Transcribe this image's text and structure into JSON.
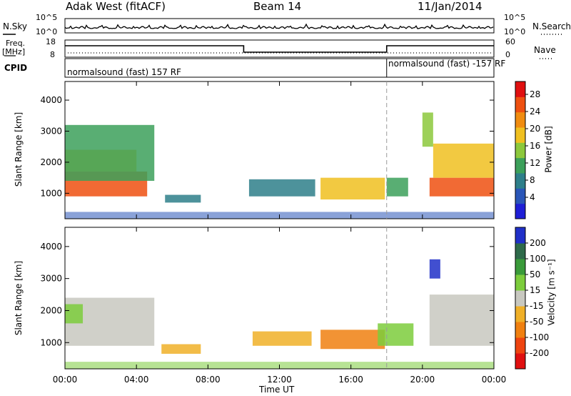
{
  "header": {
    "station": "Adak West (fitACF)",
    "beam": "Beam 14",
    "date": "11/Jan/2014"
  },
  "strip": {
    "nsky_label": "N.Sky",
    "nsearch_label": "N.Search",
    "freq_label": "Freq.",
    "freq_unit": "[MHz]",
    "nave_label": "Nave",
    "cpid_label": "CPID",
    "freq_ticks": [
      "18",
      "8"
    ],
    "nave_ticks": [
      "60",
      "0"
    ],
    "cpid_segments": [
      {
        "text": "normalsound (fast) 157 RF",
        "start_h": 0,
        "end_h": 18
      },
      {
        "text": "normalsound (fast) -157 RF",
        "start_h": 18,
        "end_h": 24
      }
    ],
    "freq_steps": [
      {
        "start_h": 0,
        "end_h": 10,
        "level": 0.8
      },
      {
        "start_h": 10,
        "end_h": 18,
        "level": 0.35
      },
      {
        "start_h": 18,
        "end_h": 24,
        "level": 0.8
      }
    ]
  },
  "axes": {
    "xlabel": "Time UT",
    "xticks": [
      "00:00",
      "04:00",
      "08:00",
      "12:00",
      "16:00",
      "20:00",
      "00:00"
    ],
    "ylabel": "Slant Range [km]",
    "yticks": [
      "1000",
      "2000",
      "3000",
      "4000"
    ],
    "ylim": [
      180,
      4600
    ],
    "xlim": [
      0,
      24
    ]
  },
  "power_colorbar": {
    "label": "Power [dB]",
    "ticks": [
      "4",
      "8",
      "12",
      "16",
      "20",
      "24",
      "28"
    ],
    "colors": [
      "#1f1fd6",
      "#2a56b8",
      "#2e7f8a",
      "#3ca05a",
      "#8cc83c",
      "#f0c020",
      "#f08c10",
      "#ee5010",
      "#e01010"
    ]
  },
  "velocity_colorbar": {
    "label": "Velocity [m s⁻¹]",
    "ticks": [
      "200",
      "100",
      "50",
      "15",
      "-15",
      "-50",
      "-100",
      "-200"
    ],
    "colors": [
      "#2030c8",
      "#2e6a4a",
      "#3a9a3a",
      "#7ccc3c",
      "#c8c8c0",
      "#f0b028",
      "#f08010",
      "#ee4410",
      "#e01010"
    ]
  },
  "chart_data": [
    {
      "type": "heatmap",
      "title": "Power",
      "xlabel": "Time UT",
      "ylabel": "Slant Range [km]",
      "xlim": [
        0,
        24
      ],
      "ylim": [
        180,
        4600
      ],
      "regions": [
        {
          "t0": 0.0,
          "t1": 4.6,
          "r0": 900,
          "r1": 1700,
          "value": 28
        },
        {
          "t0": 0.0,
          "t1": 4.0,
          "r0": 1700,
          "r1": 2400,
          "value": 20
        },
        {
          "t0": 0.0,
          "t1": 5.0,
          "r0": 1400,
          "r1": 3200,
          "value": 12
        },
        {
          "t0": 5.6,
          "t1": 7.6,
          "r0": 700,
          "r1": 950,
          "value": 8
        },
        {
          "t0": 10.3,
          "t1": 14.0,
          "r0": 900,
          "r1": 1450,
          "value": 6
        },
        {
          "t0": 14.3,
          "t1": 17.9,
          "r0": 800,
          "r1": 1500,
          "value": 18
        },
        {
          "t0": 18.0,
          "t1": 19.2,
          "r0": 900,
          "r1": 1500,
          "value": 10
        },
        {
          "t0": 20.4,
          "t1": 24.0,
          "r0": 900,
          "r1": 1500,
          "value": 28
        },
        {
          "t0": 20.6,
          "t1": 24.0,
          "r0": 1500,
          "r1": 2600,
          "value": 18
        },
        {
          "t0": 20.0,
          "t1": 20.6,
          "r0": 2500,
          "r1": 3600,
          "value": 14
        }
      ]
    },
    {
      "type": "heatmap",
      "title": "Velocity",
      "xlabel": "Time UT",
      "ylabel": "Slant Range [km]",
      "xlim": [
        0,
        24
      ],
      "ylim": [
        180,
        4600
      ],
      "regions": [
        {
          "t0": 0.0,
          "t1": 5.0,
          "r0": 900,
          "r1": 2400,
          "value": 0
        },
        {
          "t0": 0.0,
          "t1": 1.0,
          "r0": 1600,
          "r1": 2200,
          "value": 30
        },
        {
          "t0": 5.4,
          "t1": 7.6,
          "r0": 650,
          "r1": 950,
          "value": -40
        },
        {
          "t0": 10.5,
          "t1": 13.8,
          "r0": 900,
          "r1": 1350,
          "value": -40
        },
        {
          "t0": 14.3,
          "t1": 17.9,
          "r0": 800,
          "r1": 1400,
          "value": -80
        },
        {
          "t0": 17.5,
          "t1": 19.5,
          "r0": 900,
          "r1": 1600,
          "value": 30
        },
        {
          "t0": 20.4,
          "t1": 24.0,
          "r0": 900,
          "r1": 2500,
          "value": 0
        },
        {
          "t0": 20.4,
          "t1": 21.0,
          "r0": 3000,
          "r1": 3600,
          "value": 250
        }
      ]
    }
  ]
}
